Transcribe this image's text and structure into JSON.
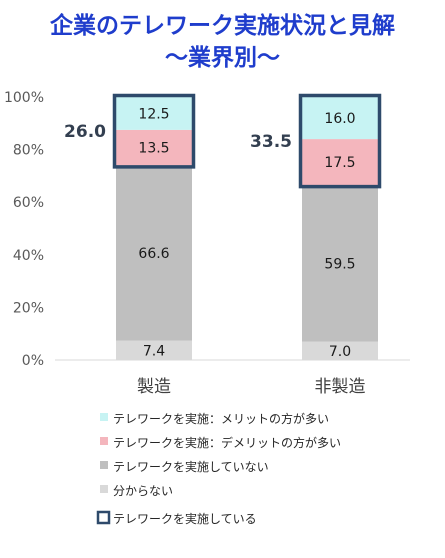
{
  "chart_data": {
    "type": "bar",
    "stacked": true,
    "title": "企業のテレワーク実施状況と見解",
    "subtitle": "～業界別～",
    "categories": [
      "製造",
      "非製造"
    ],
    "series": [
      {
        "name": "分からない",
        "values": [
          7.4,
          7.0
        ],
        "color": "#d9d9d9"
      },
      {
        "name": "テレワークを実施していない",
        "values": [
          66.6,
          59.5
        ],
        "color": "#bfbfbf"
      },
      {
        "name": "テレワークを実施：デメリットの方が多い",
        "values": [
          13.5,
          17.5
        ],
        "color": "#f4b6bd"
      },
      {
        "name": "テレワークを実施：メリットの方が多い",
        "values": [
          12.5,
          16.0
        ],
        "color": "#c7f3f3"
      }
    ],
    "value_labels": [
      [
        "7.4",
        "66.6",
        "13.5",
        "12.5"
      ],
      [
        "7.0",
        "59.5",
        "17.5",
        "16.0"
      ]
    ],
    "implementing_totals": [
      "26.0",
      "33.5"
    ],
    "implementing_legend": "テレワークを実施している",
    "implementing_color": "#2e4a6b",
    "yticks": [
      "0%",
      "20%",
      "40%",
      "60%",
      "80%",
      "100%"
    ],
    "ylim": [
      0,
      100
    ],
    "xlabel": "",
    "ylabel": "",
    "grid": false,
    "legend_position": "bottom"
  }
}
